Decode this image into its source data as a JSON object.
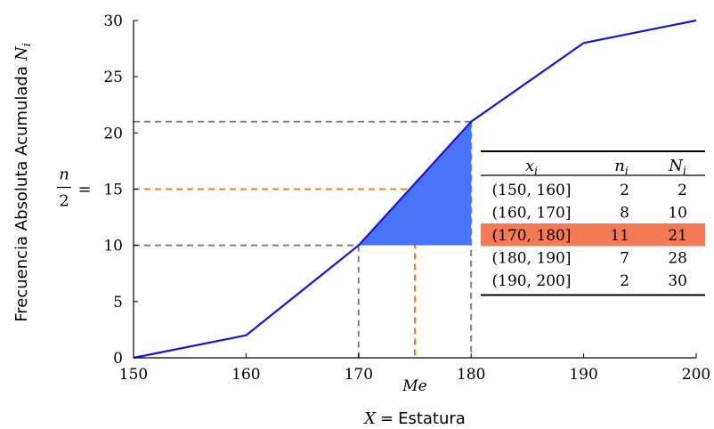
{
  "chart_data": {
    "type": "line",
    "title": "",
    "xlabel_var": "X",
    "xlabel_eq": "=",
    "xlabel_text": "Estatura",
    "ylabel_text": "Frecuencia Absoluta Acumulada",
    "ylabel_var": "N",
    "ylabel_sub": "i",
    "xlim": [
      150,
      200
    ],
    "ylim": [
      0,
      30
    ],
    "xticks": [
      150,
      160,
      170,
      180,
      190,
      200
    ],
    "yticks": [
      0,
      5,
      10,
      15,
      20,
      25,
      30
    ],
    "xtick_labels": [
      "150",
      "160",
      "170",
      "180",
      "190",
      "200"
    ],
    "ytick_labels": [
      "0",
      "5",
      "10",
      "15",
      "20",
      "25",
      "30"
    ],
    "series": [
      {
        "color": "#1515dd",
        "x": [
          150,
          160,
          170,
          180,
          190,
          200
        ],
        "y": [
          0,
          2,
          10,
          21,
          28,
          30
        ]
      }
    ],
    "median_class": {
      "x0": 170,
      "x1": 180,
      "y0": 10,
      "y1": 21,
      "fill": "#4a74f7"
    },
    "median": {
      "x": 175,
      "y": 15,
      "label": "Me",
      "color": "#f08020"
    },
    "half_n_label": {
      "num": "n",
      "den": "2",
      "eq": "="
    },
    "guide_color": "#808080"
  },
  "table": {
    "headers": [
      {
        "base": "x",
        "sub": "i"
      },
      {
        "base": "n",
        "sub": "i"
      },
      {
        "base": "N",
        "sub": "i"
      }
    ],
    "rows": [
      {
        "interval": "(150, 160]",
        "ni": "2",
        "Ni": "2",
        "highlight": false
      },
      {
        "interval": "(160, 170]",
        "ni": "8",
        "Ni": "10",
        "highlight": false
      },
      {
        "interval": "(170, 180]",
        "ni": "11",
        "Ni": "21",
        "highlight": true
      },
      {
        "interval": "(180, 190]",
        "ni": "7",
        "Ni": "28",
        "highlight": false
      },
      {
        "interval": "(190, 200]",
        "ni": "2",
        "Ni": "30",
        "highlight": false
      }
    ],
    "highlight_color": "#f47a55"
  }
}
